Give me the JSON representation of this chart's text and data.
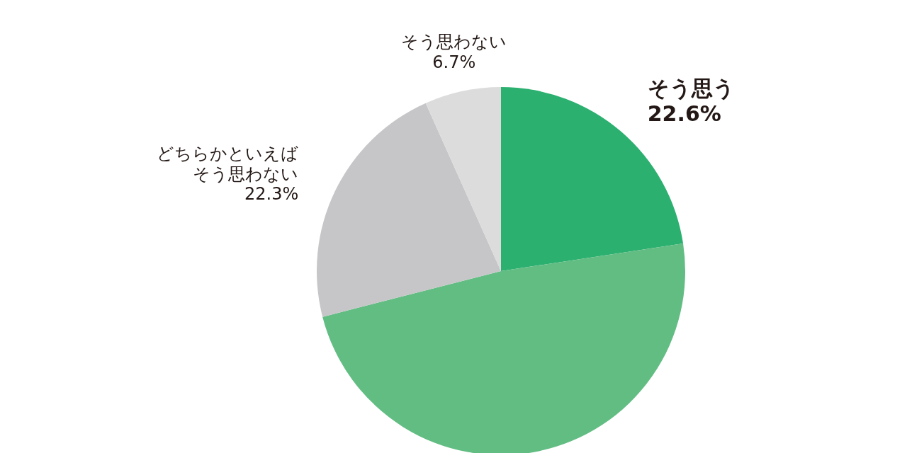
{
  "chart_data": {
    "type": "pie",
    "categories": [
      "そう思う",
      null,
      "どちらかといえばそう思わない",
      "そう思わない"
    ],
    "values": [
      22.6,
      48.4,
      22.3,
      6.7
    ],
    "colors": [
      "#2bb070",
      "#62bd83",
      "#c6c6c8",
      "#dcdcdd"
    ],
    "value_labels": [
      "22.6%",
      null,
      "22.3%",
      "6.7%"
    ]
  }
}
